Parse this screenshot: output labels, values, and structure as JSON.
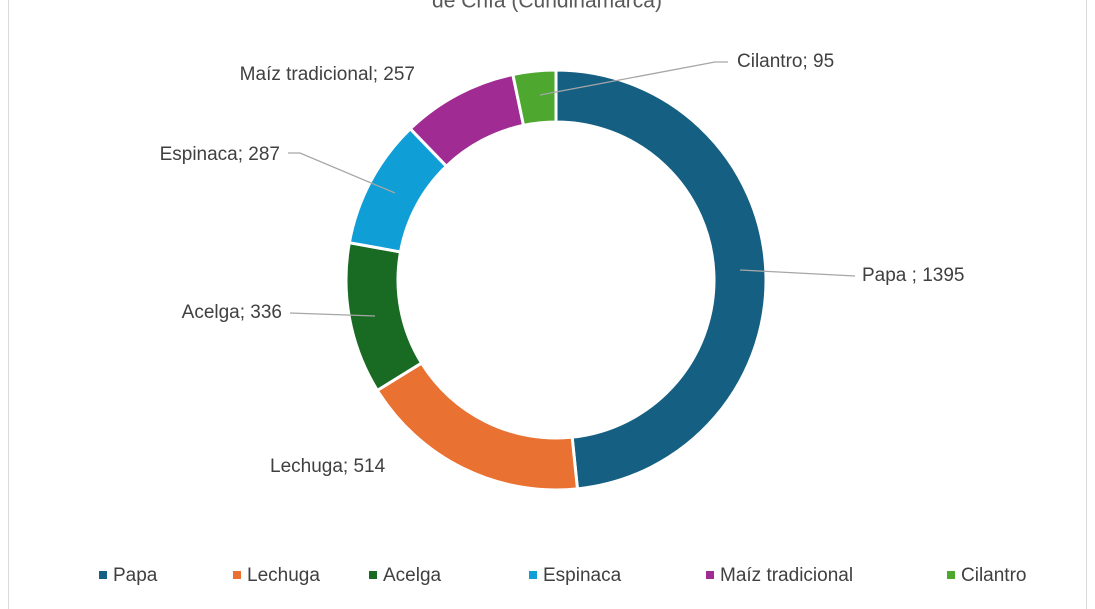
{
  "chart_data": {
    "type": "donut",
    "title": "de Chía (Cundinamarca)",
    "categories": [
      "Papa",
      "Lechuga",
      "Acelga",
      "Espinaca",
      "Maíz tradicional",
      "Cilantro"
    ],
    "values": [
      1395,
      514,
      336,
      287,
      257,
      95
    ],
    "value_labels": [
      "Papa ; 1395",
      "Lechuga; 514",
      "Acelga; 336",
      "Espinaca; 287",
      "Maíz tradicional; 257",
      "Cilantro; 95"
    ],
    "colors": [
      "#156082",
      "#e97132",
      "#196b24",
      "#0f9ed5",
      "#a02b93",
      "#4ea72e"
    ],
    "legend": "bottom"
  }
}
